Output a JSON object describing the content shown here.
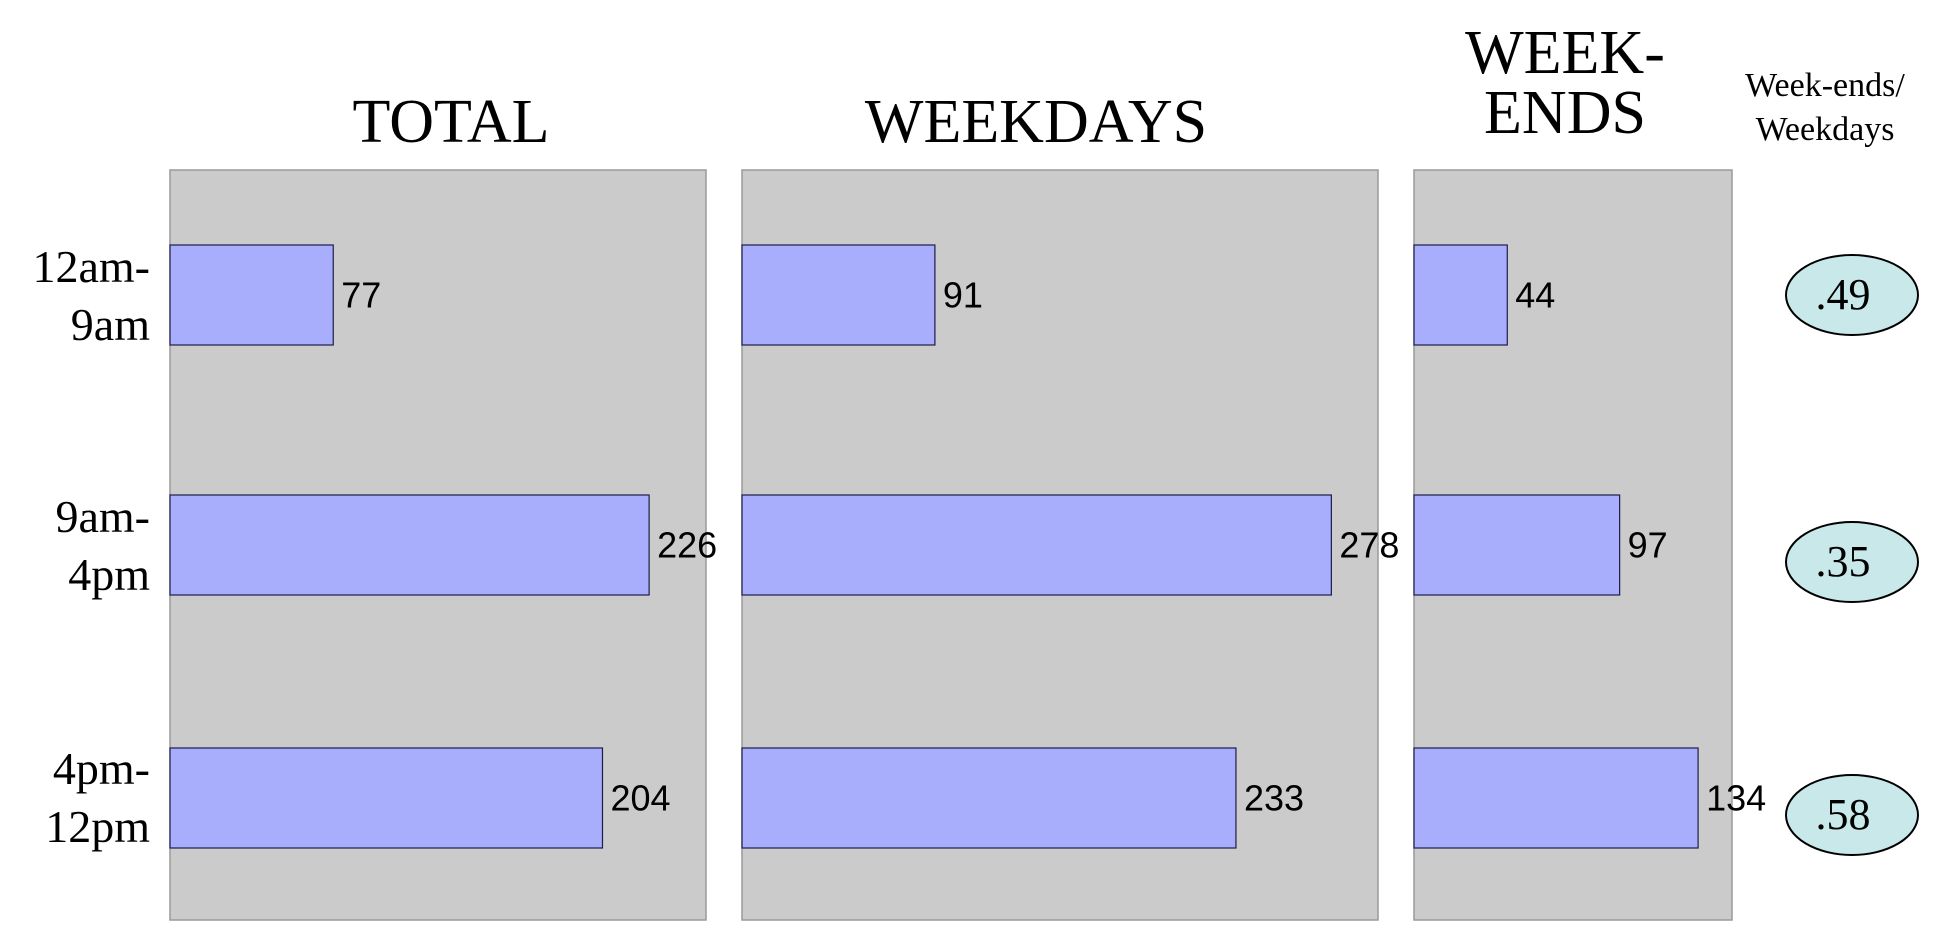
{
  "chart_data": {
    "type": "bar",
    "orientation": "horizontal",
    "categories": [
      "12am-\n9am",
      "9am-\n4pm",
      "4pm-\n12pm"
    ],
    "panels": [
      {
        "title": "TOTAL",
        "values": [
          77,
          226,
          204
        ]
      },
      {
        "title": "WEEKDAYS",
        "values": [
          91,
          278,
          233
        ]
      },
      {
        "title": "WEEK-\nENDS",
        "values": [
          44,
          97,
          134
        ]
      }
    ],
    "ratio": {
      "header": "Week-ends/\nWeekdays",
      "values": [
        ".49",
        ".35",
        ".58"
      ]
    },
    "colors": {
      "panel_bg": "#cbcbcb",
      "panel_border": "#9a9a9a",
      "bar_fill": "#a8aefb",
      "bar_stroke": "#1c1c4c",
      "ellipse_fill": "#c9e8ea",
      "ellipse_stroke": "#000000",
      "text": "#000000"
    }
  }
}
